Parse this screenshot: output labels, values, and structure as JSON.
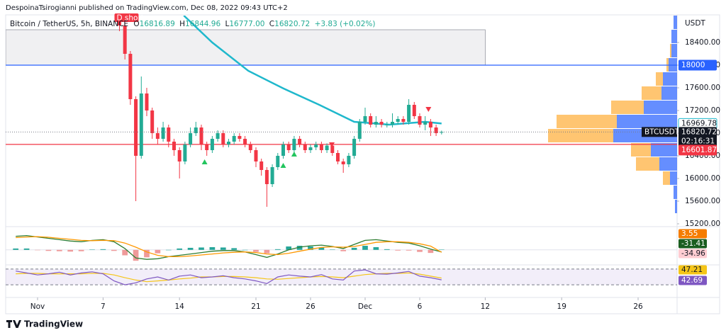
{
  "header": {
    "byline": "DespoinaTsirogianni published on TradingView.com, Dec 08, 2022 09:43 UTC+2"
  },
  "footer": {
    "brand": "TradingView"
  },
  "chart_data": [
    {
      "type": "candlestick",
      "legend": {
        "symbol": "Bitcoin / TetherUS, 5h, BINANCE",
        "ohlc": [
          {
            "key": "O",
            "value": "16816.89"
          },
          {
            "key": "H",
            "value": "16844.96"
          },
          {
            "key": "L",
            "value": "16777.00"
          },
          {
            "key": "C",
            "value": "16820.72"
          }
        ],
        "change": "+3.83 (+0.02%)"
      },
      "currency": "USDT",
      "symbol_tag": "BTCUSDT",
      "countdown": "02:16:31",
      "tag": {
        "text": "D short",
        "x": 7.5
      },
      "xlim": [
        -2.92,
        58.57
      ],
      "xticks": [
        {
          "value": 0,
          "label": "Nov"
        },
        {
          "value": 6,
          "label": "7"
        },
        {
          "value": 13,
          "label": "14"
        },
        {
          "value": 20,
          "label": "21"
        },
        {
          "value": 25,
          "label": "26"
        },
        {
          "value": 30,
          "label": "Dec"
        },
        {
          "value": 35,
          "label": "6"
        },
        {
          "value": 41,
          "label": "12"
        },
        {
          "value": 48,
          "label": "19"
        },
        {
          "value": 55,
          "label": "26"
        }
      ],
      "ylim": [
        15175,
        18875
      ],
      "yticks": [
        {
          "value": 15200,
          "label": "15200.00"
        },
        {
          "value": 15600,
          "label": "15600.00"
        },
        {
          "value": 16000,
          "label": "16000.00"
        },
        {
          "value": 16400,
          "label": "16400.00"
        },
        {
          "value": 16800,
          "label": "16800.00"
        },
        {
          "value": 17200,
          "label": "17200.00"
        },
        {
          "value": 17600,
          "label": "17600.00"
        },
        {
          "value": 18000,
          "label": "18000.00"
        },
        {
          "value": 18400,
          "label": "18400.00"
        }
      ],
      "up_color": "#22ab94",
      "down_color": "#f23645",
      "x": [
        7.5,
        8,
        8.5,
        9,
        9.5,
        10,
        10.5,
        11,
        11.5,
        12,
        12.5,
        13,
        13.5,
        14,
        14.5,
        15,
        15.5,
        16,
        16.5,
        17,
        17.5,
        18,
        18.5,
        19,
        19.5,
        20,
        20.5,
        21,
        21.5,
        22,
        22.5,
        23,
        23.5,
        24,
        24.5,
        25,
        25.5,
        26,
        26.5,
        27,
        27.5,
        28,
        28.5,
        29,
        29.5,
        30,
        30.5,
        31,
        31.5,
        32,
        32.5,
        33,
        33.5,
        34,
        34.5,
        35,
        35.5,
        36,
        36.5,
        37
      ],
      "open": [
        18800,
        18700,
        18200,
        17400,
        16400,
        17500,
        17200,
        16800,
        16700,
        16900,
        16650,
        16500,
        16300,
        16600,
        16800,
        16900,
        16600,
        16500,
        16700,
        16800,
        16600,
        16650,
        16750,
        16700,
        16600,
        16500,
        16300,
        16150,
        15900,
        16200,
        16400,
        16600,
        16500,
        16700,
        16600,
        16500,
        16550,
        16600,
        16500,
        16580,
        16450,
        16300,
        16250,
        16400,
        16700,
        17000,
        17100,
        16950,
        17000,
        16950,
        16950,
        17000,
        17050,
        17000,
        17300,
        17100,
        16950,
        17000,
        16900,
        16816.89
      ],
      "high": [
        18850,
        18750,
        18250,
        17450,
        17800,
        17600,
        17250,
        16900,
        17000,
        16950,
        16700,
        16550,
        16650,
        16900,
        17000,
        16950,
        16650,
        16750,
        16850,
        16850,
        16700,
        16800,
        16800,
        16750,
        16650,
        16550,
        16350,
        16200,
        16250,
        16450,
        16650,
        16650,
        16750,
        16750,
        16650,
        16600,
        16650,
        16650,
        16620,
        16620,
        16500,
        16350,
        16450,
        16750,
        17050,
        17250,
        17150,
        17100,
        17050,
        17000,
        17150,
        17100,
        17100,
        17400,
        17350,
        17150,
        17100,
        17050,
        16950,
        16844.96
      ],
      "low": [
        18600,
        18100,
        17300,
        15600,
        16350,
        17100,
        16700,
        16600,
        16650,
        16550,
        16400,
        16000,
        16250,
        16550,
        16750,
        16500,
        16400,
        16450,
        16650,
        16550,
        16550,
        16600,
        16650,
        16550,
        16450,
        16200,
        16050,
        15500,
        15850,
        16150,
        16350,
        16450,
        16450,
        16550,
        16450,
        16450,
        16500,
        16450,
        16450,
        16400,
        16250,
        16100,
        16200,
        16350,
        16650,
        16950,
        16900,
        16900,
        16900,
        16900,
        16900,
        16950,
        16950,
        16950,
        17050,
        16900,
        16850,
        16750,
        16750,
        16777
      ],
      "close": [
        18700,
        18200,
        17400,
        16400,
        17500,
        17200,
        16800,
        16700,
        16900,
        16650,
        16500,
        16300,
        16600,
        16800,
        16900,
        16600,
        16500,
        16700,
        16800,
        16600,
        16650,
        16750,
        16700,
        16600,
        16500,
        16300,
        16150,
        15900,
        16200,
        16400,
        16600,
        16500,
        16700,
        16600,
        16500,
        16550,
        16600,
        16500,
        16580,
        16450,
        16300,
        16250,
        16400,
        16700,
        17000,
        17100,
        16950,
        17000,
        16950,
        16950,
        17000,
        17050,
        17000,
        17300,
        17100,
        16950,
        17000,
        16900,
        16800,
        16820.72
      ],
      "ma": {
        "color": "#1fb8cc",
        "x": [
          13.4,
          16,
          19.3,
          22.5,
          25.8,
          29,
          32.2,
          35.5,
          37
        ],
        "values": [
          18875,
          18400,
          17900,
          17590,
          17300,
          17000,
          16950,
          17000,
          16969.78
        ]
      },
      "hlines": [
        {
          "value": 18000,
          "color": "#2962ff"
        },
        {
          "value": 16601.87,
          "color": "#f23645"
        }
      ],
      "zone": {
        "x": [
          -2.92,
          41
        ],
        "y": [
          18000,
          18625
        ]
      },
      "buy_signals": {
        "color": "#22c55e",
        "x": [
          15.3,
          22.5,
          23.5
        ],
        "y": [
          16287,
          16225,
          16425
        ]
      },
      "sell_signals": {
        "color": "#f23645",
        "x": [
          26.95,
          35.8
        ],
        "y": [
          16600,
          17225
        ]
      },
      "volume_profile": {
        "up_color": "rgba(41,98,255,0.72)",
        "down_color": "rgba(255,183,77,0.8)",
        "bins": [
          15375,
          15625,
          15875,
          16125,
          16375,
          16625,
          16875,
          17125,
          17375,
          17625,
          17875,
          18125,
          18375,
          18625,
          18875
        ],
        "up": [
          3,
          5,
          10,
          25,
          37,
          90,
          85,
          47,
          22,
          20,
          12,
          8,
          8,
          5
        ],
        "down": [
          0,
          0,
          10,
          33,
          28,
          92,
          85,
          46,
          28,
          10,
          3,
          2,
          0,
          0
        ]
      }
    },
    {
      "type": "macd",
      "ylim": [
        -200,
        300
      ],
      "x": [
        -2,
        -1,
        0,
        1,
        2,
        3,
        4,
        5,
        6,
        7,
        8,
        9,
        10,
        11,
        12,
        13,
        14,
        15,
        16,
        17,
        18,
        19,
        20,
        21,
        22,
        23,
        24,
        25,
        26,
        27,
        28,
        29,
        30,
        31,
        32,
        33,
        34,
        35,
        36,
        37
      ],
      "histogram": {
        "pos_color": "#26a69a",
        "neg_color": "#ef9a9a",
        "label_color": "#f57c00",
        "values": [
          20,
          20,
          -5,
          -15,
          -20,
          -25,
          -20,
          5,
          10,
          -15,
          -80,
          -160,
          -110,
          -50,
          0,
          20,
          30,
          35,
          40,
          35,
          25,
          0,
          -30,
          -50,
          10,
          50,
          60,
          50,
          35,
          5,
          -20,
          30,
          60,
          40,
          10,
          -10,
          -10,
          -30,
          -45,
          3.55
        ]
      },
      "series": [
        {
          "color": "#2e7d32",
          "label_color": "#1b5e20",
          "values": [
            200,
            210,
            190,
            170,
            150,
            130,
            120,
            140,
            150,
            120,
            20,
            -120,
            -140,
            -130,
            -100,
            -80,
            -60,
            -40,
            -20,
            -10,
            -10,
            -30,
            -70,
            -110,
            -60,
            0,
            40,
            60,
            70,
            50,
            20,
            80,
            140,
            150,
            130,
            110,
            100,
            60,
            10,
            -31.41
          ]
        },
        {
          "color": "#ff9800",
          "label_color": "#ffcdd2",
          "values": [
            180,
            190,
            195,
            185,
            170,
            155,
            140,
            135,
            140,
            135,
            100,
            40,
            -30,
            -80,
            -100,
            -100,
            -90,
            -75,
            -60,
            -45,
            -35,
            -30,
            -40,
            -60,
            -70,
            -50,
            -20,
            10,
            35,
            45,
            40,
            50,
            80,
            110,
            120,
            120,
            110,
            90,
            55,
            -34.96
          ]
        }
      ]
    },
    {
      "type": "rsi",
      "ylim": [
        23,
        77
      ],
      "bands": [
        70,
        30
      ],
      "x": [
        -2,
        -1,
        0,
        1,
        2,
        3,
        4,
        5,
        6,
        7,
        8,
        9,
        10,
        11,
        12,
        13,
        14,
        15,
        16,
        17,
        18,
        19,
        20,
        21,
        22,
        23,
        24,
        25,
        26,
        27,
        28,
        29,
        30,
        31,
        32,
        33,
        34,
        35,
        36,
        37
      ],
      "series": [
        {
          "color": "#f5c518",
          "values": [
            58,
            59,
            59,
            58,
            58,
            58,
            58,
            59,
            59,
            55,
            48,
            42,
            38,
            40,
            42,
            45,
            47,
            50,
            50,
            51,
            51,
            50,
            48,
            45,
            44,
            46,
            48,
            50,
            51,
            50,
            48,
            52,
            56,
            58,
            59,
            59,
            60,
            57,
            52,
            47.21
          ]
        },
        {
          "color": "#7e57c2",
          "values": [
            65,
            60,
            55,
            58,
            62,
            55,
            60,
            63,
            58,
            40,
            30,
            35,
            45,
            50,
            42,
            52,
            55,
            48,
            50,
            53,
            48,
            45,
            40,
            33,
            50,
            55,
            52,
            50,
            56,
            45,
            42,
            65,
            68,
            58,
            57,
            60,
            64,
            52,
            48,
            42.69
          ]
        }
      ]
    }
  ]
}
